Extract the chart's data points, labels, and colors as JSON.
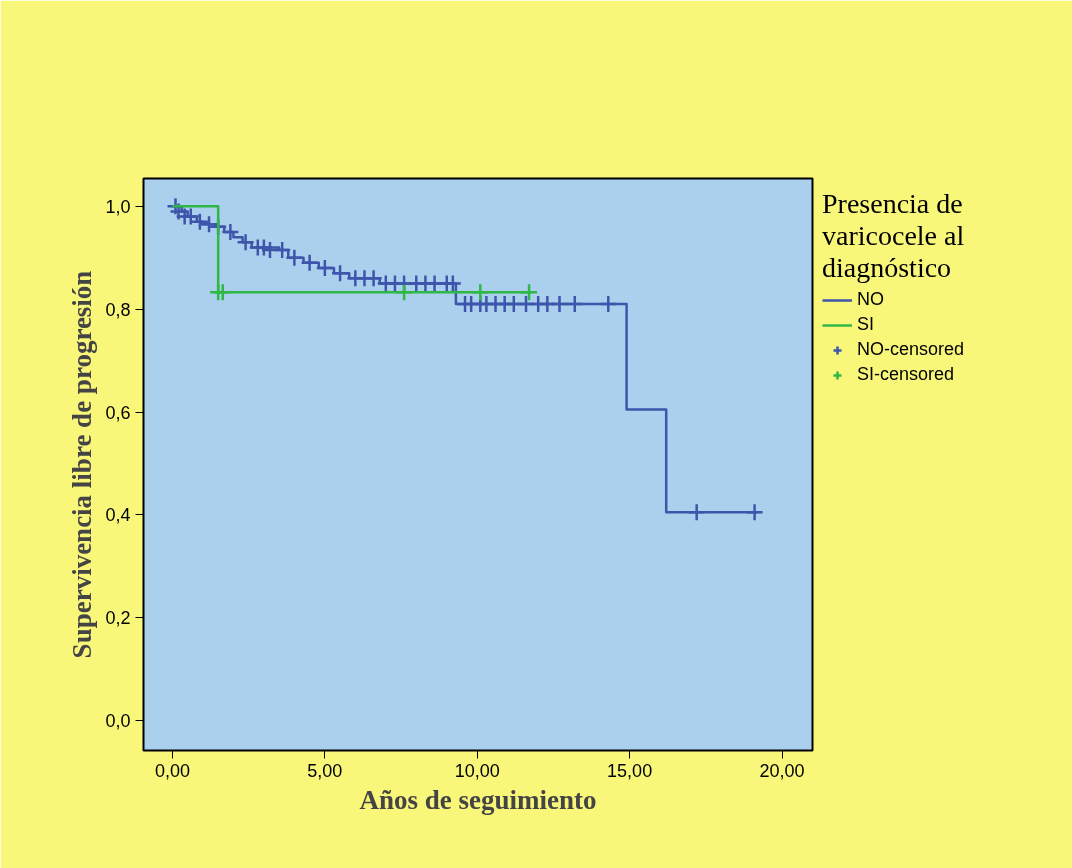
{
  "chart_data": {
    "type": "step",
    "xlabel": "Años de seguimiento",
    "ylabel": "Supervivencia libre de progresión",
    "legend_title": "Presencia de varicocele al diagnóstico",
    "legend": "right",
    "grid": false,
    "xlim": [
      -0.95,
      21
    ],
    "ylim": [
      -0.058,
      1.054
    ],
    "xticks": [
      {
        "value": 0,
        "label": "0,00"
      },
      {
        "value": 5,
        "label": "5,00"
      },
      {
        "value": 10,
        "label": "10,00"
      },
      {
        "value": 15,
        "label": "15,00"
      },
      {
        "value": 20,
        "label": "20,00"
      }
    ],
    "yticks": [
      {
        "value": 0,
        "label": "0,0"
      },
      {
        "value": 0.2,
        "label": "0,2"
      },
      {
        "value": 0.4,
        "label": "0,4"
      },
      {
        "value": 0.6,
        "label": "0,6"
      },
      {
        "value": 0.8,
        "label": "0,8"
      },
      {
        "value": 1.0,
        "label": "1,0"
      }
    ],
    "series": [
      {
        "name": "NO",
        "color": "#3d55ab",
        "x": [
          0,
          0.3,
          0.5,
          0.8,
          1.0,
          1.4,
          1.7,
          2.0,
          2.3,
          2.6,
          3.5,
          3.8,
          4.3,
          4.8,
          5.3,
          5.8,
          6.8,
          9.3,
          14.9,
          16.2,
          19.2
        ],
        "values": [
          1.0,
          0.99,
          0.98,
          0.97,
          0.965,
          0.96,
          0.95,
          0.94,
          0.93,
          0.92,
          0.915,
          0.9,
          0.89,
          0.88,
          0.87,
          0.86,
          0.85,
          0.81,
          0.605,
          0.405,
          0.405
        ]
      },
      {
        "name": "SI",
        "color": "#2fb845",
        "x": [
          0,
          1.5,
          11.8
        ],
        "values": [
          1.0,
          0.833,
          0.833
        ]
      },
      {
        "name": "NO-censored",
        "type": "scatter",
        "marker": "cross",
        "color": "#3d55ab",
        "x": [
          0.1,
          0.2,
          0.4,
          0.6,
          0.9,
          1.2,
          1.5,
          1.9,
          2.4,
          2.8,
          3.0,
          3.2,
          3.6,
          4.0,
          4.5,
          5.0,
          5.5,
          6.0,
          6.3,
          6.6,
          7.0,
          7.3,
          7.6,
          8.0,
          8.3,
          8.6,
          9.0,
          9.2,
          9.6,
          9.8,
          10.1,
          10.3,
          10.6,
          10.9,
          11.2,
          11.6,
          12.0,
          12.3,
          12.7,
          13.2,
          14.3,
          17.2,
          19.1
        ],
        "values": [
          1.0,
          0.99,
          0.98,
          0.98,
          0.97,
          0.965,
          0.96,
          0.95,
          0.93,
          0.92,
          0.92,
          0.915,
          0.915,
          0.9,
          0.89,
          0.88,
          0.87,
          0.86,
          0.86,
          0.86,
          0.85,
          0.85,
          0.85,
          0.85,
          0.85,
          0.85,
          0.85,
          0.85,
          0.81,
          0.81,
          0.81,
          0.81,
          0.81,
          0.81,
          0.81,
          0.81,
          0.81,
          0.81,
          0.81,
          0.81,
          0.81,
          0.405,
          0.405
        ]
      },
      {
        "name": "SI-censored",
        "type": "scatter",
        "marker": "cross",
        "color": "#2fb845",
        "x": [
          1.5,
          1.65,
          7.6,
          10.1,
          11.7
        ],
        "values": [
          0.833,
          0.833,
          0.833,
          0.833,
          0.833
        ]
      }
    ]
  }
}
